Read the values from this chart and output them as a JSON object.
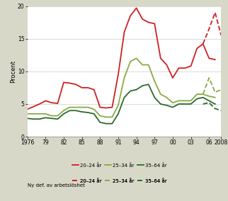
{
  "ylabel": "Procent",
  "ylim": [
    0,
    20
  ],
  "yticks": [
    0,
    5,
    10,
    15,
    20
  ],
  "xlim": [
    1976,
    2008
  ],
  "xtick_labels": [
    "1976",
    "79",
    "82",
    "85",
    "88",
    "91",
    "94",
    "97",
    "00",
    "03",
    "06",
    "2008"
  ],
  "xtick_positions": [
    1976,
    1979,
    1982,
    1985,
    1988,
    1991,
    1994,
    1997,
    2000,
    2003,
    2006,
    2008
  ],
  "fig_bg": "#d8d8c8",
  "plot_bg": "#ffffff",
  "series_20_24": {
    "years": [
      1976,
      1977,
      1978,
      1979,
      1980,
      1981,
      1982,
      1983,
      1984,
      1985,
      1986,
      1987,
      1988,
      1989,
      1990,
      1991,
      1992,
      1993,
      1994,
      1995,
      1996,
      1997,
      1998,
      1999,
      2000,
      2001,
      2002,
      2003,
      2004,
      2005,
      2006,
      2007
    ],
    "values": [
      4.2,
      4.6,
      5.0,
      5.5,
      5.2,
      5.1,
      8.3,
      8.2,
      8.0,
      7.5,
      7.5,
      7.2,
      4.5,
      4.4,
      4.5,
      9.5,
      16.0,
      18.5,
      19.7,
      18.0,
      17.5,
      17.3,
      12.0,
      11.0,
      9.0,
      10.5,
      10.5,
      10.8,
      13.5,
      14.2,
      12.0,
      11.8
    ],
    "color": "#cc2222",
    "lw": 1.3
  },
  "series_25_34": {
    "years": [
      1976,
      1977,
      1978,
      1979,
      1980,
      1981,
      1982,
      1983,
      1984,
      1985,
      1986,
      1987,
      1988,
      1989,
      1990,
      1991,
      1992,
      1993,
      1994,
      1995,
      1996,
      1997,
      1998,
      1999,
      2000,
      2001,
      2002,
      2003,
      2004,
      2005,
      2006,
      2007
    ],
    "values": [
      3.5,
      3.5,
      3.5,
      3.5,
      3.2,
      3.2,
      4.0,
      4.5,
      4.5,
      4.5,
      4.5,
      4.2,
      3.2,
      3.0,
      3.0,
      4.8,
      9.0,
      11.5,
      12.0,
      11.0,
      11.0,
      8.5,
      6.5,
      6.0,
      5.2,
      5.5,
      5.5,
      5.5,
      6.5,
      6.5,
      6.2,
      6.0
    ],
    "color": "#88aa44",
    "lw": 1.3
  },
  "series_35_64": {
    "years": [
      1976,
      1977,
      1978,
      1979,
      1980,
      1981,
      1982,
      1983,
      1984,
      1985,
      1986,
      1987,
      1988,
      1989,
      1990,
      1991,
      1992,
      1993,
      1994,
      1995,
      1996,
      1997,
      1998,
      1999,
      2000,
      2001,
      2002,
      2003,
      2004,
      2005,
      2006,
      2007
    ],
    "values": [
      2.8,
      2.7,
      2.7,
      2.9,
      2.8,
      2.7,
      3.5,
      4.0,
      4.0,
      3.8,
      3.7,
      3.5,
      2.2,
      2.0,
      2.0,
      3.5,
      6.0,
      7.0,
      7.2,
      7.8,
      8.0,
      6.0,
      5.0,
      4.8,
      4.5,
      5.0,
      5.0,
      5.0,
      5.8,
      6.0,
      5.5,
      5.0
    ],
    "color": "#2a6a2a",
    "lw": 1.3
  },
  "new_20_24": {
    "years": [
      2005,
      2006,
      2007,
      2008
    ],
    "values": [
      14.2,
      16.5,
      19.0,
      15.5
    ],
    "color": "#cc2222"
  },
  "new_25_34": {
    "years": [
      2005,
      2006,
      2007,
      2008
    ],
    "values": [
      6.5,
      9.0,
      6.8,
      7.2
    ],
    "color": "#88aa44"
  },
  "new_35_64": {
    "years": [
      2005,
      2006,
      2007,
      2008
    ],
    "values": [
      5.0,
      5.2,
      4.3,
      4.0
    ],
    "color": "#2a6a2a"
  },
  "legend1_labels": [
    "20–24 år",
    "25–34 år",
    "35–64 år"
  ],
  "legend1_colors": [
    "#cc2222",
    "#88aa44",
    "#2a6a2a"
  ],
  "legend2_prefix": "Ny def. av arbetslöshet",
  "legend2_labels": [
    "20–24 år",
    "25–34 år",
    "35–64 år"
  ],
  "legend2_colors": [
    "#cc2222",
    "#88aa44",
    "#2a6a2a"
  ]
}
